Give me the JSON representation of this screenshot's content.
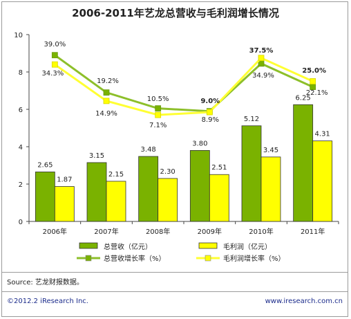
{
  "footer": {
    "source": "Source: 艺龙财报数据。",
    "copyright": "©2012.2 iResearch Inc.",
    "website": "www.iresearch.com.cn"
  },
  "chart_data": {
    "type": "bar",
    "title": "2006-2011年艺龙总营收与毛利润增长情况",
    "categories": [
      "2006年",
      "2007年",
      "2008年",
      "2009年",
      "2010年",
      "2011年"
    ],
    "ylim": [
      0,
      10
    ],
    "yticks": [
      0,
      2,
      4,
      6,
      8,
      10
    ],
    "grid": false,
    "legend_position": "bottom",
    "series": [
      {
        "name": "总营收（亿元）",
        "kind": "bar",
        "color": "#7ab200",
        "values": [
          2.65,
          3.15,
          3.48,
          3.8,
          5.12,
          6.25
        ],
        "labels": [
          "2.65",
          "3.15",
          "3.48",
          "3.80",
          "5.12",
          "6.25"
        ]
      },
      {
        "name": "毛利润（亿元）",
        "kind": "bar",
        "color": "#ffff00",
        "values": [
          1.87,
          2.15,
          2.3,
          2.51,
          3.45,
          4.31
        ],
        "labels": [
          "1.87",
          "2.15",
          "2.30",
          "2.51",
          "3.45",
          "4.31"
        ]
      },
      {
        "name": "总营收增长率（%）",
        "kind": "line",
        "color": "#8dbf2a",
        "values": [
          8.9,
          6.9,
          6.05,
          5.9,
          8.45,
          7.2
        ],
        "labels": [
          "39.0%",
          "19.2%",
          "10.5%",
          "9.0%",
          "34.9%",
          "22.1%"
        ]
      },
      {
        "name": "毛利润增长率（%）",
        "kind": "line",
        "color": "#ffff33",
        "values": [
          8.4,
          6.45,
          5.7,
          5.85,
          8.75,
          7.5
        ],
        "labels": [
          "34.3%",
          "14.9%",
          "7.1%",
          "8.9%",
          "37.5%",
          "25.0%"
        ]
      }
    ]
  }
}
